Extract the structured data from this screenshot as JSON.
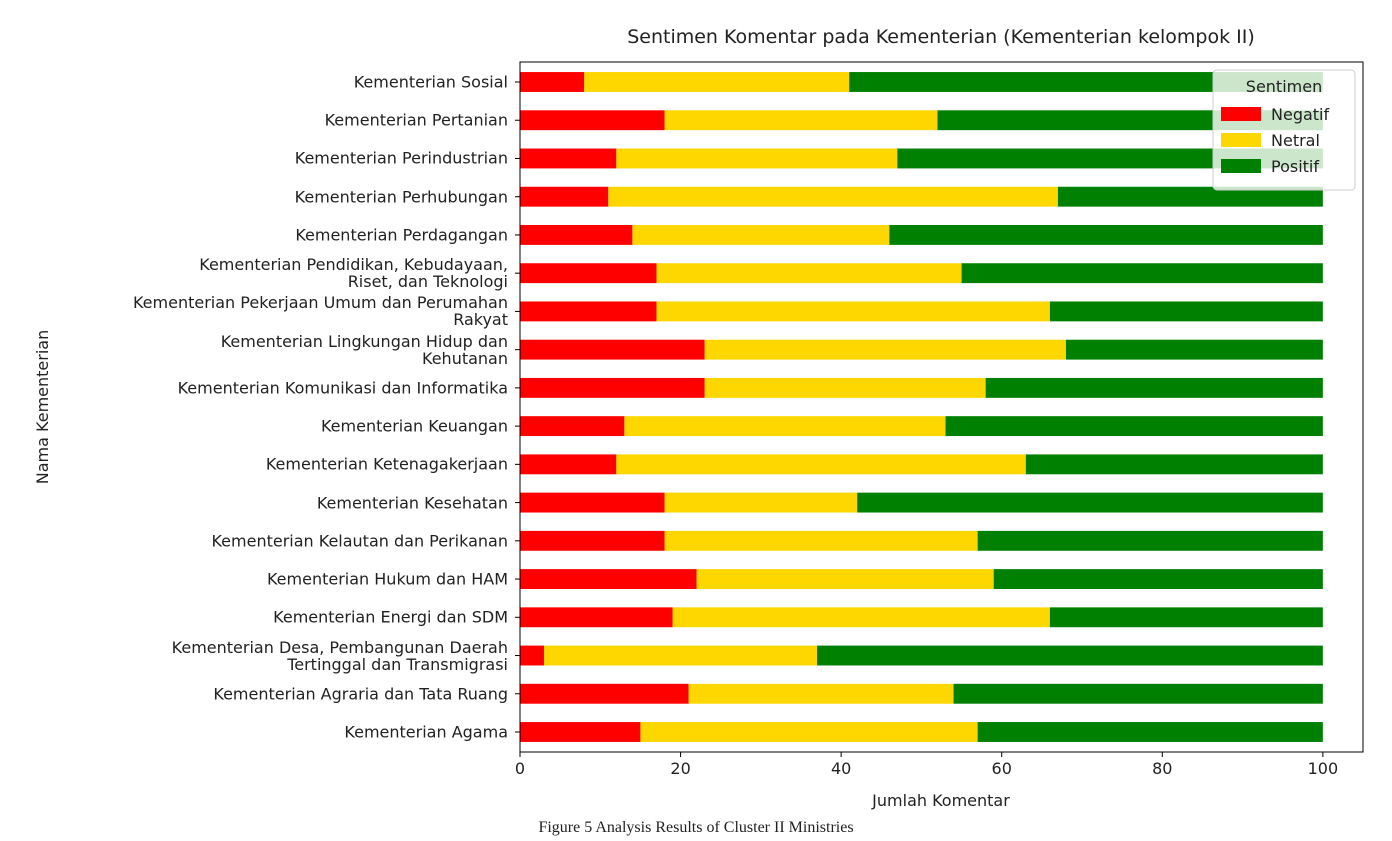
{
  "chart_data": {
    "type": "stacked-barh",
    "title": "Sentimen Komentar pada Kementerian (Kementerian kelompok II)",
    "x_label": "Jumlah Komentar",
    "y_label": "Nama Kementerian",
    "caption": "Figure 5 Analysis Results of Cluster II Ministries",
    "legend_title": "Sentimen",
    "legend_position": "upper right",
    "categories": [
      "Kementerian Agama",
      "Kementerian Agraria dan Tata Ruang",
      "Kementerian Desa, Pembangunan Daerah\nTertinggal dan Transmigrasi",
      "Kementerian Energi dan SDM",
      "Kementerian Hukum dan HAM",
      "Kementerian Kelautan dan Perikanan",
      "Kementerian Kesehatan",
      "Kementerian Ketenagakerjaan",
      "Kementerian Keuangan",
      "Kementerian Komunikasi dan Informatika",
      "Kementerian Lingkungan Hidup dan\nKehutanan",
      "Kementerian Pekerjaan Umum dan Perumahan\nRakyat",
      "Kementerian Pendidikan, Kebudayaan,\nRiset, dan Teknologi",
      "Kementerian Perdagangan",
      "Kementerian Perhubungan",
      "Kementerian Perindustrian",
      "Kementerian Pertanian",
      "Kementerian Sosial"
    ],
    "series": [
      {
        "name": "Negatif",
        "color": "#ff0000",
        "values": [
          15,
          21,
          3,
          19,
          22,
          18,
          18,
          12,
          13,
          23,
          23,
          17,
          17,
          14,
          11,
          12,
          18,
          8
        ]
      },
      {
        "name": "Netral",
        "color": "#ffd700",
        "values": [
          42,
          33,
          34,
          47,
          37,
          39,
          24,
          51,
          40,
          35,
          45,
          49,
          38,
          32,
          56,
          35,
          34,
          33
        ]
      },
      {
        "name": "Positif",
        "color": "#008000",
        "values": [
          43,
          46,
          63,
          34,
          41,
          43,
          58,
          37,
          47,
          42,
          32,
          34,
          45,
          54,
          33,
          53,
          48,
          59
        ]
      }
    ],
    "xlim": [
      0,
      105
    ],
    "xticks": [
      0,
      20,
      40,
      60,
      80,
      100
    ]
  }
}
